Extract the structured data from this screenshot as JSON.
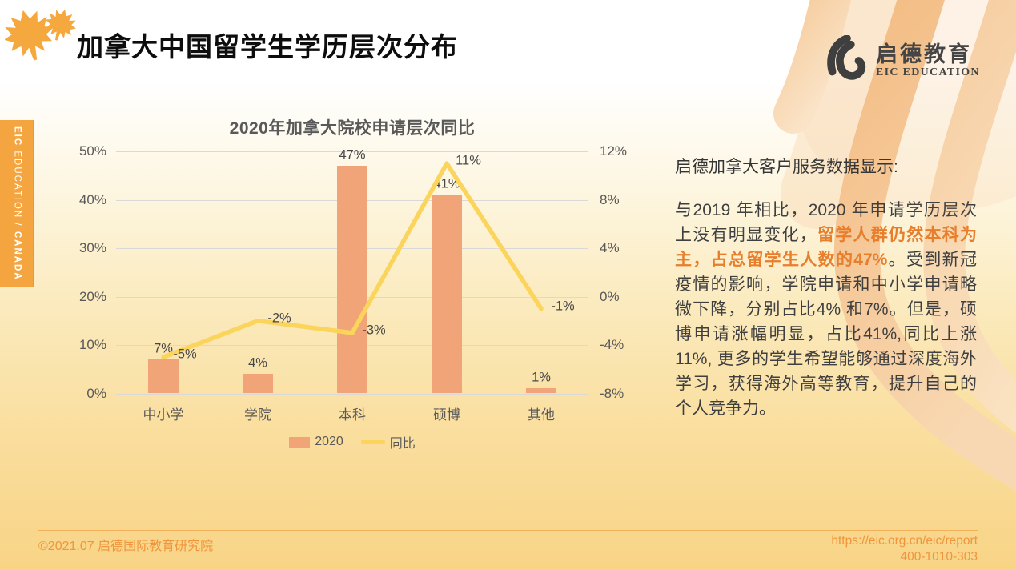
{
  "slide": {
    "title": "加拿大中国留学生学历层次分布",
    "logo": {
      "cn": "启德教育",
      "en": "EIC EDUCATION"
    },
    "side_tab": {
      "bold1": "EIC",
      "normal": " EDUCATION / ",
      "bold2": "CANADA"
    },
    "footer": {
      "left": "©2021.07 启德国际教育研究院",
      "right_line1": "https://eic.org.cn/eic/report",
      "right_line2": "400-1010-303"
    }
  },
  "colors": {
    "accent_orange": "#f5a540",
    "bar_fill": "#f0a477",
    "line_stroke": "#fbd45c",
    "highlight_text": "#e87e2b",
    "footer_text": "#f0953c"
  },
  "chart_data": {
    "type": "bar",
    "subtype": "combo-bar-line",
    "title": "2020年加拿大院校申请层次同比",
    "categories": [
      "中小学",
      "学院",
      "本科",
      "硕博",
      "其他"
    ],
    "series": [
      {
        "name": "2020",
        "type": "bar",
        "axis": "left",
        "values": [
          7,
          4,
          47,
          41,
          1
        ],
        "labels": [
          "7%",
          "4%",
          "47%",
          "41%",
          "1%"
        ],
        "color": "#f0a477"
      },
      {
        "name": "同比",
        "type": "line",
        "axis": "right",
        "values": [
          -5,
          -2,
          -3,
          11,
          -1
        ],
        "labels": [
          "-5%",
          "-2%",
          "-3%",
          "11%",
          "-1%"
        ],
        "color": "#fbd45c"
      }
    ],
    "left_axis": {
      "ticks": [
        "50%",
        "40%",
        "30%",
        "20%",
        "10%",
        "0%"
      ],
      "min": 0,
      "max": 50
    },
    "right_axis": {
      "ticks": [
        "12%",
        "8%",
        "4%",
        "0%",
        "-4%",
        "-8%"
      ],
      "min": -8,
      "max": 12
    },
    "grid": true,
    "legend_position": "bottom"
  },
  "panel": {
    "heading": "启德加拿大客户服务数据显示:",
    "p_before": "与2019 年相比，2020 年申请学历层次上没有明显变化，",
    "p_highlight": "留学人群仍然本科为主，占总留学生人数的47%",
    "p_after": "。受到新冠疫情的影响，学院申请和中小学申请略微下降，分别占比4% 和7%。但是，硕博申请涨幅明显，占比41%,同比上涨11%, 更多的学生希望能够通过深度海外学习，获得海外高等教育，提升自己的个人竞争力。"
  }
}
